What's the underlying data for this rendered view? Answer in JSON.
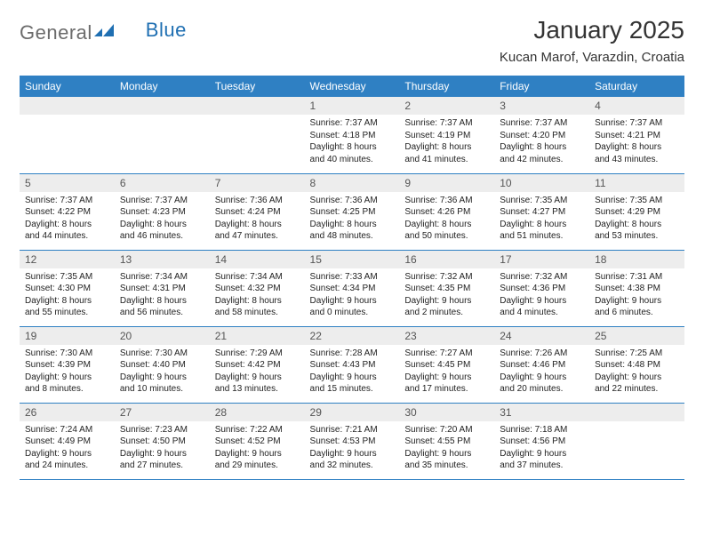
{
  "brand": {
    "general": "General",
    "blue": "Blue"
  },
  "title": "January 2025",
  "location": "Kucan Marof, Varazdin, Croatia",
  "colors": {
    "header_bg": "#2f80c3",
    "header_fg": "#ffffff",
    "daynum_bg": "#ededed",
    "rule": "#2f80c3",
    "logo_gray": "#6b6b6b",
    "logo_blue": "#1f6fb2"
  },
  "weekdays": [
    "Sunday",
    "Monday",
    "Tuesday",
    "Wednesday",
    "Thursday",
    "Friday",
    "Saturday"
  ],
  "weeks": [
    [
      {
        "n": null
      },
      {
        "n": null
      },
      {
        "n": null
      },
      {
        "n": "1",
        "sunrise": "Sunrise: 7:37 AM",
        "sunset": "Sunset: 4:18 PM",
        "day1": "Daylight: 8 hours",
        "day2": "and 40 minutes."
      },
      {
        "n": "2",
        "sunrise": "Sunrise: 7:37 AM",
        "sunset": "Sunset: 4:19 PM",
        "day1": "Daylight: 8 hours",
        "day2": "and 41 minutes."
      },
      {
        "n": "3",
        "sunrise": "Sunrise: 7:37 AM",
        "sunset": "Sunset: 4:20 PM",
        "day1": "Daylight: 8 hours",
        "day2": "and 42 minutes."
      },
      {
        "n": "4",
        "sunrise": "Sunrise: 7:37 AM",
        "sunset": "Sunset: 4:21 PM",
        "day1": "Daylight: 8 hours",
        "day2": "and 43 minutes."
      }
    ],
    [
      {
        "n": "5",
        "sunrise": "Sunrise: 7:37 AM",
        "sunset": "Sunset: 4:22 PM",
        "day1": "Daylight: 8 hours",
        "day2": "and 44 minutes."
      },
      {
        "n": "6",
        "sunrise": "Sunrise: 7:37 AM",
        "sunset": "Sunset: 4:23 PM",
        "day1": "Daylight: 8 hours",
        "day2": "and 46 minutes."
      },
      {
        "n": "7",
        "sunrise": "Sunrise: 7:36 AM",
        "sunset": "Sunset: 4:24 PM",
        "day1": "Daylight: 8 hours",
        "day2": "and 47 minutes."
      },
      {
        "n": "8",
        "sunrise": "Sunrise: 7:36 AM",
        "sunset": "Sunset: 4:25 PM",
        "day1": "Daylight: 8 hours",
        "day2": "and 48 minutes."
      },
      {
        "n": "9",
        "sunrise": "Sunrise: 7:36 AM",
        "sunset": "Sunset: 4:26 PM",
        "day1": "Daylight: 8 hours",
        "day2": "and 50 minutes."
      },
      {
        "n": "10",
        "sunrise": "Sunrise: 7:35 AM",
        "sunset": "Sunset: 4:27 PM",
        "day1": "Daylight: 8 hours",
        "day2": "and 51 minutes."
      },
      {
        "n": "11",
        "sunrise": "Sunrise: 7:35 AM",
        "sunset": "Sunset: 4:29 PM",
        "day1": "Daylight: 8 hours",
        "day2": "and 53 minutes."
      }
    ],
    [
      {
        "n": "12",
        "sunrise": "Sunrise: 7:35 AM",
        "sunset": "Sunset: 4:30 PM",
        "day1": "Daylight: 8 hours",
        "day2": "and 55 minutes."
      },
      {
        "n": "13",
        "sunrise": "Sunrise: 7:34 AM",
        "sunset": "Sunset: 4:31 PM",
        "day1": "Daylight: 8 hours",
        "day2": "and 56 minutes."
      },
      {
        "n": "14",
        "sunrise": "Sunrise: 7:34 AM",
        "sunset": "Sunset: 4:32 PM",
        "day1": "Daylight: 8 hours",
        "day2": "and 58 minutes."
      },
      {
        "n": "15",
        "sunrise": "Sunrise: 7:33 AM",
        "sunset": "Sunset: 4:34 PM",
        "day1": "Daylight: 9 hours",
        "day2": "and 0 minutes."
      },
      {
        "n": "16",
        "sunrise": "Sunrise: 7:32 AM",
        "sunset": "Sunset: 4:35 PM",
        "day1": "Daylight: 9 hours",
        "day2": "and 2 minutes."
      },
      {
        "n": "17",
        "sunrise": "Sunrise: 7:32 AM",
        "sunset": "Sunset: 4:36 PM",
        "day1": "Daylight: 9 hours",
        "day2": "and 4 minutes."
      },
      {
        "n": "18",
        "sunrise": "Sunrise: 7:31 AM",
        "sunset": "Sunset: 4:38 PM",
        "day1": "Daylight: 9 hours",
        "day2": "and 6 minutes."
      }
    ],
    [
      {
        "n": "19",
        "sunrise": "Sunrise: 7:30 AM",
        "sunset": "Sunset: 4:39 PM",
        "day1": "Daylight: 9 hours",
        "day2": "and 8 minutes."
      },
      {
        "n": "20",
        "sunrise": "Sunrise: 7:30 AM",
        "sunset": "Sunset: 4:40 PM",
        "day1": "Daylight: 9 hours",
        "day2": "and 10 minutes."
      },
      {
        "n": "21",
        "sunrise": "Sunrise: 7:29 AM",
        "sunset": "Sunset: 4:42 PM",
        "day1": "Daylight: 9 hours",
        "day2": "and 13 minutes."
      },
      {
        "n": "22",
        "sunrise": "Sunrise: 7:28 AM",
        "sunset": "Sunset: 4:43 PM",
        "day1": "Daylight: 9 hours",
        "day2": "and 15 minutes."
      },
      {
        "n": "23",
        "sunrise": "Sunrise: 7:27 AM",
        "sunset": "Sunset: 4:45 PM",
        "day1": "Daylight: 9 hours",
        "day2": "and 17 minutes."
      },
      {
        "n": "24",
        "sunrise": "Sunrise: 7:26 AM",
        "sunset": "Sunset: 4:46 PM",
        "day1": "Daylight: 9 hours",
        "day2": "and 20 minutes."
      },
      {
        "n": "25",
        "sunrise": "Sunrise: 7:25 AM",
        "sunset": "Sunset: 4:48 PM",
        "day1": "Daylight: 9 hours",
        "day2": "and 22 minutes."
      }
    ],
    [
      {
        "n": "26",
        "sunrise": "Sunrise: 7:24 AM",
        "sunset": "Sunset: 4:49 PM",
        "day1": "Daylight: 9 hours",
        "day2": "and 24 minutes."
      },
      {
        "n": "27",
        "sunrise": "Sunrise: 7:23 AM",
        "sunset": "Sunset: 4:50 PM",
        "day1": "Daylight: 9 hours",
        "day2": "and 27 minutes."
      },
      {
        "n": "28",
        "sunrise": "Sunrise: 7:22 AM",
        "sunset": "Sunset: 4:52 PM",
        "day1": "Daylight: 9 hours",
        "day2": "and 29 minutes."
      },
      {
        "n": "29",
        "sunrise": "Sunrise: 7:21 AM",
        "sunset": "Sunset: 4:53 PM",
        "day1": "Daylight: 9 hours",
        "day2": "and 32 minutes."
      },
      {
        "n": "30",
        "sunrise": "Sunrise: 7:20 AM",
        "sunset": "Sunset: 4:55 PM",
        "day1": "Daylight: 9 hours",
        "day2": "and 35 minutes."
      },
      {
        "n": "31",
        "sunrise": "Sunrise: 7:18 AM",
        "sunset": "Sunset: 4:56 PM",
        "day1": "Daylight: 9 hours",
        "day2": "and 37 minutes."
      },
      {
        "n": null
      }
    ]
  ]
}
